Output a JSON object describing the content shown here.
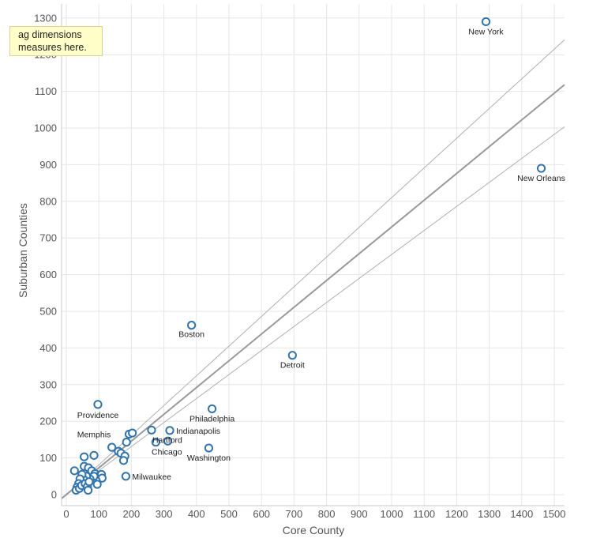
{
  "tooltip": {
    "line1": "ag dimensions",
    "line2": "measures here."
  },
  "chart_data": {
    "type": "scatter",
    "xlabel": "Core County",
    "ylabel": "Suburban Counties",
    "xlim": [
      -5,
      1550
    ],
    "ylim": [
      -20,
      1340
    ],
    "x_ticks": [
      0,
      100,
      200,
      300,
      400,
      500,
      600,
      700,
      800,
      900,
      1000,
      1100,
      1200,
      1300,
      1400,
      1500
    ],
    "y_ticks": [
      0,
      100,
      200,
      300,
      400,
      500,
      600,
      700,
      800,
      900,
      1000,
      1100,
      1200,
      1300
    ],
    "grid": true,
    "marker_color": "#2e75b6",
    "trend_color": "#999999",
    "band_color": "#b0b0b0",
    "trend_line": {
      "slope": 0.73,
      "intercept": 0
    },
    "confidence_band": {
      "upper_slope": 0.81,
      "lower_slope": 0.655
    },
    "points": [
      {
        "x": 1290,
        "y": 1290,
        "label": "New York"
      },
      {
        "x": 1460,
        "y": 890,
        "label": "New Orleans"
      },
      {
        "x": 385,
        "y": 462,
        "label": "Boston"
      },
      {
        "x": 695,
        "y": 380,
        "label": "Detroit"
      },
      {
        "x": 97,
        "y": 246,
        "label": "Providence"
      },
      {
        "x": 448,
        "y": 234,
        "label": "Philadelphia"
      },
      {
        "x": 262,
        "y": 176,
        "label": "Hartford"
      },
      {
        "x": 318,
        "y": 175,
        "label": "Indianapolis"
      },
      {
        "x": 275,
        "y": 143,
        "label": "Chicago"
      },
      {
        "x": 438,
        "y": 127,
        "label": "Washington"
      },
      {
        "x": 183,
        "y": 50,
        "label": "Milwaukee"
      },
      {
        "x": 85,
        "y": 107,
        "label": "Memphis"
      },
      {
        "x": 312,
        "y": 146,
        "label": ""
      },
      {
        "x": 193,
        "y": 165,
        "label": ""
      },
      {
        "x": 203,
        "y": 168,
        "label": ""
      },
      {
        "x": 185,
        "y": 143,
        "label": ""
      },
      {
        "x": 140,
        "y": 129,
        "label": ""
      },
      {
        "x": 160,
        "y": 118,
        "label": ""
      },
      {
        "x": 168,
        "y": 113,
        "label": ""
      },
      {
        "x": 180,
        "y": 105,
        "label": ""
      },
      {
        "x": 176,
        "y": 93,
        "label": ""
      },
      {
        "x": 55,
        "y": 103,
        "label": ""
      },
      {
        "x": 25,
        "y": 65,
        "label": ""
      },
      {
        "x": 55,
        "y": 77,
        "label": ""
      },
      {
        "x": 68,
        "y": 73,
        "label": ""
      },
      {
        "x": 78,
        "y": 65,
        "label": ""
      },
      {
        "x": 88,
        "y": 57,
        "label": ""
      },
      {
        "x": 100,
        "y": 50,
        "label": ""
      },
      {
        "x": 108,
        "y": 55,
        "label": ""
      },
      {
        "x": 110,
        "y": 45,
        "label": ""
      },
      {
        "x": 92,
        "y": 38,
        "label": ""
      },
      {
        "x": 85,
        "y": 50,
        "label": ""
      },
      {
        "x": 73,
        "y": 42,
        "label": ""
      },
      {
        "x": 62,
        "y": 50,
        "label": ""
      },
      {
        "x": 55,
        "y": 40,
        "label": ""
      },
      {
        "x": 48,
        "y": 55,
        "label": ""
      },
      {
        "x": 42,
        "y": 43,
        "label": ""
      },
      {
        "x": 38,
        "y": 30,
        "label": ""
      },
      {
        "x": 33,
        "y": 20,
        "label": ""
      },
      {
        "x": 30,
        "y": 12,
        "label": ""
      },
      {
        "x": 40,
        "y": 17,
        "label": ""
      },
      {
        "x": 47,
        "y": 25,
        "label": ""
      },
      {
        "x": 58,
        "y": 30,
        "label": ""
      },
      {
        "x": 65,
        "y": 22,
        "label": ""
      },
      {
        "x": 70,
        "y": 35,
        "label": ""
      },
      {
        "x": 67,
        "y": 12,
        "label": ""
      },
      {
        "x": 95,
        "y": 28,
        "label": ""
      }
    ]
  }
}
